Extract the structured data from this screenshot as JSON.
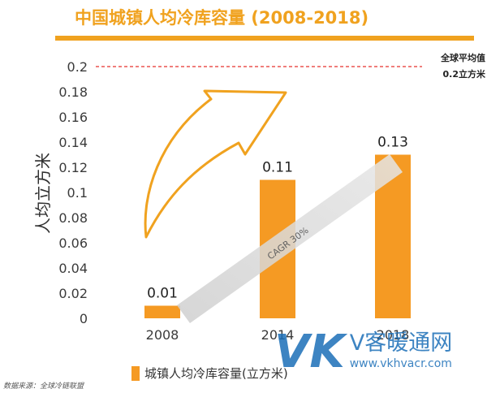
{
  "header": {
    "title": "中国城镇人均冷库容量 (2008-2018)"
  },
  "chart_data": {
    "type": "bar",
    "categories": [
      "2008",
      "2014",
      "2018"
    ],
    "values": [
      0.01,
      0.11,
      0.13
    ],
    "data_labels": [
      "0.01",
      "0.11",
      "0.13"
    ],
    "ylabel": "人均立方米",
    "ylim": [
      0,
      0.2
    ],
    "yticks": [
      "0",
      "0.02",
      "0.04",
      "0.06",
      "0.08",
      "0.1",
      "0.12",
      "0.14",
      "0.16",
      "0.18",
      "0.2"
    ],
    "bar_color": "#f59a23",
    "grid": false,
    "legend": {
      "position": "bottom",
      "label": "城镇人均冷库容量(立方米)"
    },
    "reference_line": {
      "value": 0.2,
      "label_line1": "全球平均值",
      "label_line2": "0.2立方米",
      "color": "#e8322c"
    },
    "annotations": {
      "growth_band": "CAGR 30%"
    }
  },
  "footer": {
    "source": "数据来源：全球冷链联盟"
  },
  "watermark": {
    "logo": "VK",
    "brand": "V客暖通网",
    "url": "www.vkhvacr.com"
  }
}
